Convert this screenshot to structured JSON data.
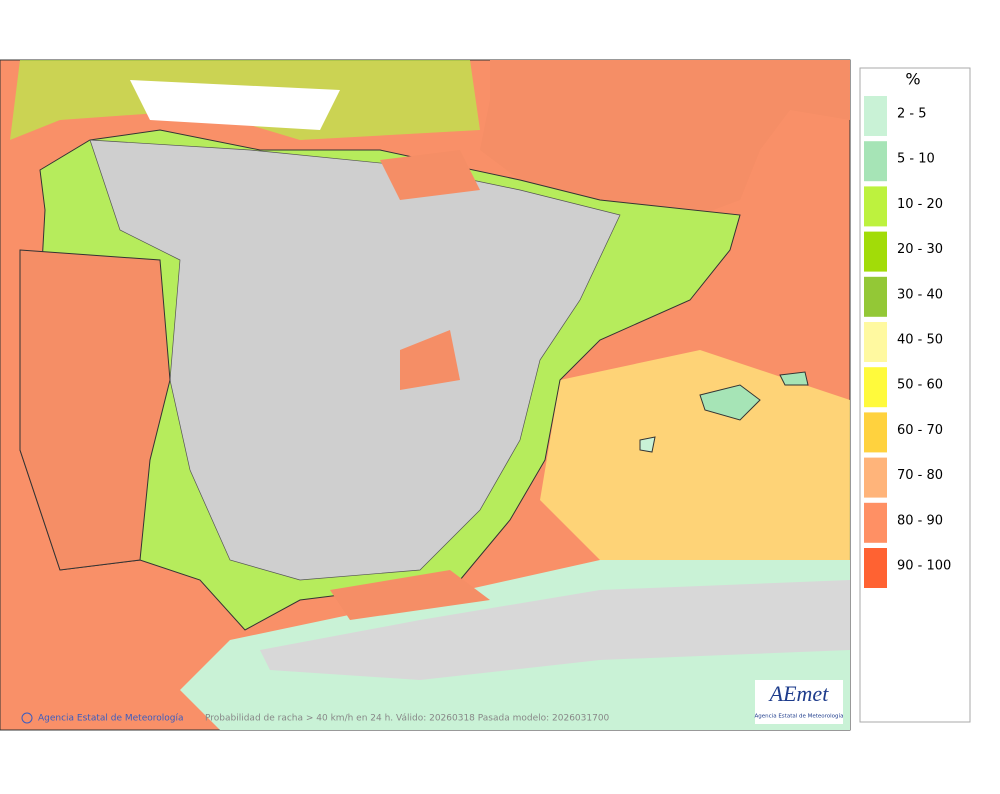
{
  "map": {
    "footer_credit": "Agencia Estatal de Meteorología",
    "footer_caption": "Probabilidad de racha > 40 km/h en 24 h. Válido: 20260318 Pasada modelo: 2026031700",
    "logo": "AEmet",
    "logo_subtitle": "Agencia Estatal de Meteorología"
  },
  "legend": {
    "title": "%",
    "entries": [
      {
        "label": "2 - 5",
        "color": "#c9f2d6"
      },
      {
        "label": "5 - 10",
        "color": "#a6e4b6"
      },
      {
        "label": "10 - 20",
        "color": "#bdf23e"
      },
      {
        "label": "20 - 30",
        "color": "#a2dc08"
      },
      {
        "label": "30 - 40",
        "color": "#93c836"
      },
      {
        "label": "40 - 50",
        "color": "#fff9a0"
      },
      {
        "label": "50 - 60",
        "color": "#fffa3c"
      },
      {
        "label": "60 - 70",
        "color": "#ffd23e"
      },
      {
        "label": "70 - 80",
        "color": "#ffb47a"
      },
      {
        "label": "80 - 90",
        "color": "#ff9064"
      },
      {
        "label": "90 - 100",
        "color": "#ff6232"
      }
    ]
  }
}
